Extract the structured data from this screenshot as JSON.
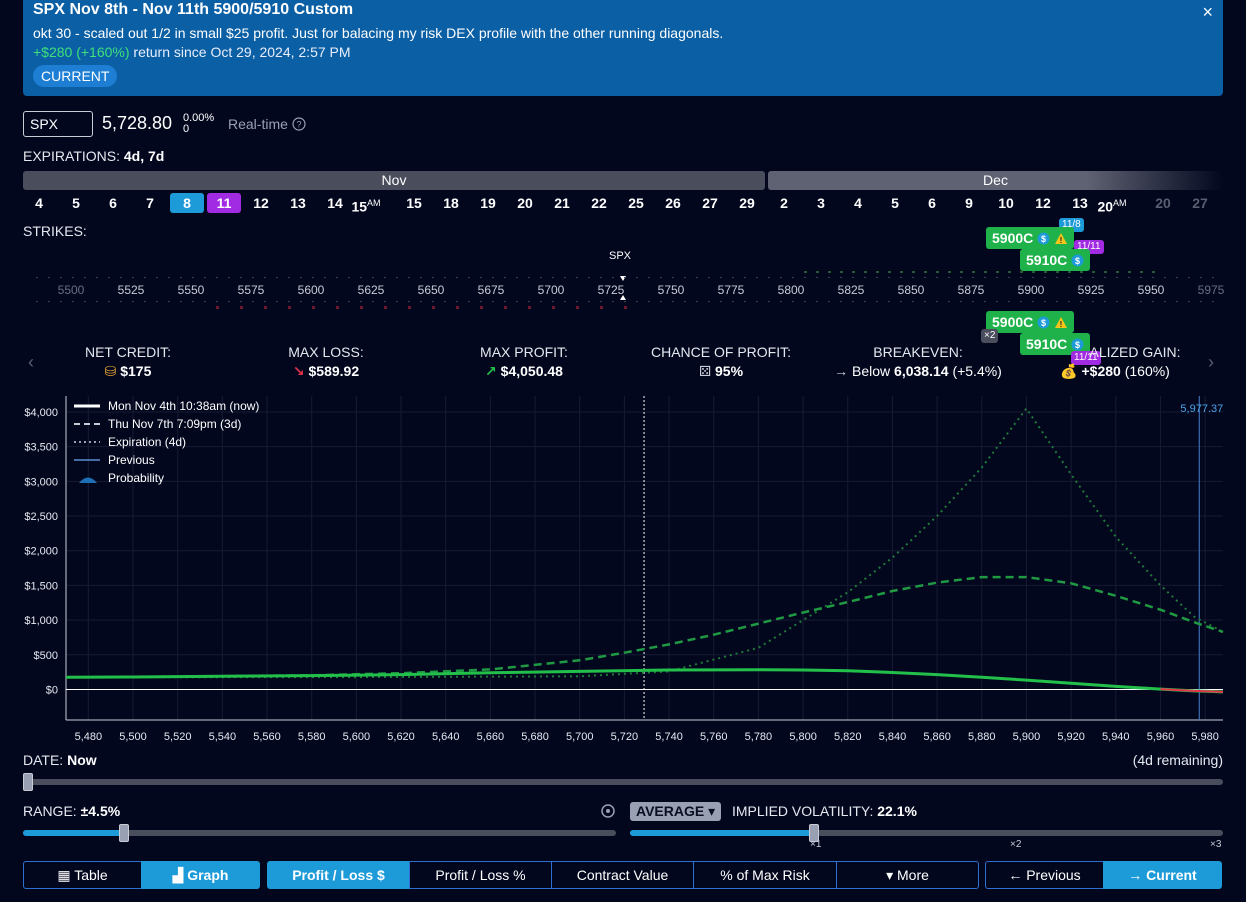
{
  "banner": {
    "title": "SPX Nov 8th - Nov 11th 5900/5910 Custom",
    "description": "okt 30 - scaled out 1/2 in small $25 profit. Just for balacing my risk DEX profile with the other running diagonals.",
    "return_amount": "+$280",
    "return_pct": "(+160%)",
    "return_text": "return since Oct 29, 2024, 2:57 PM",
    "status_badge": "CURRENT",
    "close": "×"
  },
  "symbol": {
    "ticker": "SPX",
    "price": "5,728.80",
    "change_pct": "0.00%",
    "change_abs": "0",
    "realtime_label": "Real-time"
  },
  "expirations": {
    "label": "EXPIRATIONS:",
    "value": "4d, 7d",
    "months": [
      "Nov",
      "Dec"
    ],
    "days": [
      "4",
      "5",
      "6",
      "7",
      "8",
      "11",
      "12",
      "13",
      "14",
      "15",
      "15",
      "18",
      "19",
      "20",
      "21",
      "22",
      "25",
      "26",
      "27",
      "29",
      "2",
      "3",
      "4",
      "5",
      "6",
      "9",
      "10",
      "12",
      "13",
      "20",
      "20",
      "27"
    ],
    "am_suffix": "AM"
  },
  "strikes": {
    "label": "STRIKES:",
    "underlying_marker": "SPX",
    "labels": [
      "5500",
      "5525",
      "5550",
      "5575",
      "5600",
      "5625",
      "5650",
      "5675",
      "5700",
      "5725",
      "5750",
      "5775",
      "5800",
      "5825",
      "5850",
      "5875",
      "5900",
      "5925",
      "5950",
      "5975"
    ],
    "legs_top": [
      {
        "label": "5900C",
        "date": "11/8"
      },
      {
        "label": "5910C",
        "date": "11/11"
      }
    ],
    "legs_bottom": [
      {
        "label": "5900C",
        "count": "×2"
      },
      {
        "label": "5910C",
        "date": "11/11"
      }
    ]
  },
  "stats": [
    {
      "label": "NET CREDIT:",
      "value": "$175",
      "icon": "coins-icon"
    },
    {
      "label": "MAX LOSS:",
      "value": "$589.92",
      "icon": "arrow-down-red-icon"
    },
    {
      "label": "MAX PROFIT:",
      "value": "$4,050.48",
      "icon": "arrow-up-green-icon"
    },
    {
      "label": "CHANCE OF PROFIT:",
      "value": "95%",
      "icon": "dice-icon"
    },
    {
      "label": "BREAKEVEN:",
      "prefix": "Below",
      "value": "6,038.14",
      "suffix": "(+5.4%)",
      "icon": "arrow-right-icon"
    },
    {
      "label": "REALIZED GAIN:",
      "label_visible": "ALIZED GAIN:",
      "value": "+$280",
      "suffix": "(160%)",
      "icon": "money-bag-icon"
    }
  ],
  "chart_data": {
    "type": "line",
    "current_price_label": "5,977.37",
    "xlim": [
      5470,
      5988
    ],
    "ylim": [
      -440,
      4230
    ],
    "x_ticks": [
      "5,480",
      "5,500",
      "5,520",
      "5,540",
      "5,560",
      "5,580",
      "5,600",
      "5,620",
      "5,640",
      "5,660",
      "5,680",
      "5,700",
      "5,720",
      "5,740",
      "5,760",
      "5,780",
      "5,800",
      "5,820",
      "5,840",
      "5,860",
      "5,880",
      "5,900",
      "5,920",
      "5,940",
      "5,960",
      "5,980"
    ],
    "y_ticks": [
      "$4,000",
      "$3,500",
      "$3,000",
      "$2,500",
      "$2,000",
      "$1,500",
      "$1,000",
      "$500",
      "$0"
    ],
    "spot_x": 5728.8,
    "marker_x": 5977.37,
    "legend": [
      {
        "name": "Mon Nov 4th 10:38am (now)",
        "style": "solid",
        "color": "#ffffff"
      },
      {
        "name": "Thu Nov 7th 7:09pm (3d)",
        "style": "dashed",
        "color": "#c9ccd6"
      },
      {
        "name": "Expiration (4d)",
        "style": "dotted",
        "color": "#9aa0b4"
      },
      {
        "name": "Previous",
        "style": "solid-thin",
        "color": "#5b8fd0"
      },
      {
        "name": "Probability",
        "style": "area",
        "color": "#1d6fb5"
      }
    ],
    "series": [
      {
        "name": "Mon Nov 4th 10:38am (now)",
        "color": "#22c04a",
        "style": "solid",
        "x": [
          5470,
          5500,
          5540,
          5580,
          5620,
          5660,
          5700,
          5740,
          5780,
          5800,
          5820,
          5840,
          5860,
          5880,
          5900,
          5920,
          5940,
          5960,
          5975,
          5988
        ],
        "y": [
          175,
          180,
          190,
          200,
          215,
          240,
          260,
          280,
          285,
          280,
          270,
          245,
          215,
          175,
          135,
          90,
          45,
          5,
          -20,
          -35
        ]
      },
      {
        "name": "Thu Nov 7th 7:09pm (3d)",
        "color": "#1f9a43",
        "style": "dashed",
        "x": [
          5470,
          5520,
          5580,
          5620,
          5660,
          5700,
          5720,
          5740,
          5760,
          5780,
          5800,
          5820,
          5840,
          5860,
          5880,
          5900,
          5920,
          5940,
          5960,
          5975,
          5988
        ],
        "y": [
          175,
          185,
          205,
          235,
          290,
          420,
          530,
          650,
          790,
          950,
          1110,
          1260,
          1420,
          1540,
          1620,
          1620,
          1530,
          1350,
          1150,
          970,
          830
        ]
      },
      {
        "name": "Expiration (4d)",
        "color": "#1f7a3a",
        "style": "dotted",
        "x": [
          5470,
          5600,
          5700,
          5740,
          5780,
          5800,
          5820,
          5840,
          5860,
          5880,
          5900,
          5920,
          5940,
          5960,
          5975,
          5988
        ],
        "y": [
          175,
          178,
          190,
          260,
          600,
          1000,
          1400,
          1900,
          2500,
          3200,
          4050,
          3100,
          2200,
          1500,
          1050,
          830
        ]
      }
    ]
  },
  "date_slider": {
    "label": "DATE:",
    "value": "Now",
    "remaining": "(4d remaining)",
    "fraction": 0.0
  },
  "range_slider": {
    "label": "RANGE:",
    "value": "±4.5%",
    "fraction": 0.17
  },
  "iv": {
    "mode": "AVERAGE",
    "label": "IMPLIED VOLATILITY:",
    "value": "22.1%",
    "fraction": 0.31,
    "marks": [
      "×1",
      "×2",
      "×3"
    ]
  },
  "view_toggle": {
    "table": "Table",
    "graph": "Graph"
  },
  "metric_tabs": [
    "Profit / Loss $",
    "Profit / Loss %",
    "Contract Value",
    "% of Max Risk",
    "More"
  ],
  "nav": {
    "previous": "Previous",
    "current": "Current"
  }
}
